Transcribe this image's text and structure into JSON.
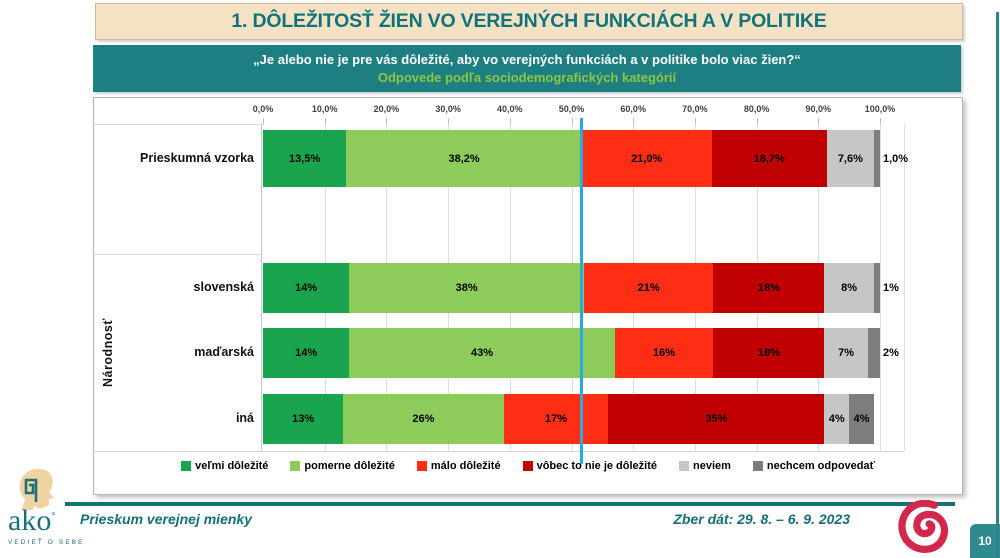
{
  "slide": {
    "title": "1. DÔLEŽITOSŤ ŽIEN VO VEREJNÝCH FUNKCIÁCH A V POLITIKE",
    "question": "„Je alebo nie je pre vás dôležité, aby vo verejných funkciách a v politike bolo viac žien?“",
    "question_sub": "Odpovede podľa sociodemografických kategórií",
    "page_number": "10"
  },
  "chart_data": {
    "type": "bar",
    "orientation": "horizontal",
    "stacked": true,
    "unit": "%",
    "xlim": [
      0,
      100
    ],
    "x_ticks": [
      "0,0%",
      "10,0%",
      "20,0%",
      "30,0%",
      "40,0%",
      "50,0%",
      "60,0%",
      "70,0%",
      "80,0%",
      "90,0%",
      "100,0%"
    ],
    "grid": true,
    "legend_position": "bottom",
    "group_label": "Národnosť",
    "series": [
      "veľmi dôležité",
      "pomerne dôležité",
      "málo dôležité",
      "vôbec to nie je dôležité",
      "neviem",
      "nechcem odpovedať"
    ],
    "series_colors": [
      "#1BA44E",
      "#8DCB5A",
      "#FD2E14",
      "#C00000",
      "#C6C6C6",
      "#7D7D7D"
    ],
    "rows": [
      {
        "label": "Prieskumná vzorka",
        "group": "",
        "values": [
          13.5,
          38.2,
          21.0,
          18.7,
          7.6,
          1.0
        ],
        "value_labels": [
          "13,5%",
          "38,2%",
          "21,0%",
          "18,7%",
          "7,6%",
          "1,0%"
        ]
      },
      {
        "label": "slovenská",
        "group": "Národnosť",
        "values": [
          14,
          38,
          21,
          18,
          8,
          1
        ],
        "value_labels": [
          "14%",
          "38%",
          "21%",
          "18%",
          "8%",
          "1%"
        ]
      },
      {
        "label": "maďarská",
        "group": "Národnosť",
        "values": [
          14,
          43,
          16,
          18,
          7,
          2
        ],
        "value_labels": [
          "14%",
          "43%",
          "16%",
          "18%",
          "7%",
          "2%"
        ]
      },
      {
        "label": "iná",
        "group": "Národnosť",
        "values": [
          13,
          26,
          17,
          35,
          4,
          4
        ],
        "value_labels": [
          "13%",
          "26%",
          "17%",
          "35%",
          "4%",
          "4%"
        ]
      }
    ],
    "reference_line": {
      "value": 51.7,
      "color": "#29ABE2"
    }
  },
  "footer": {
    "left_text": "Prieskum verejnej mienky",
    "right_text": "Zber dát: 29. 8. – 6. 9. 2023",
    "logo_text": "ako",
    "logo_tagline": "VEDIEŤ O SEBE"
  },
  "icons": {
    "logo_head": "ako-head-profile-icon",
    "spiral": "red-spiral-logo-icon"
  },
  "colors": {
    "teal_band": "#1E7F83",
    "title_text": "#0F747A",
    "title_bg": "#F5E2C4",
    "subline_green": "#8DC63F",
    "footer_teal": "#156F75",
    "page_box": "#2E8A8E",
    "spiral_red": "#D4274C",
    "logo_beige": "#F0D3A2"
  }
}
